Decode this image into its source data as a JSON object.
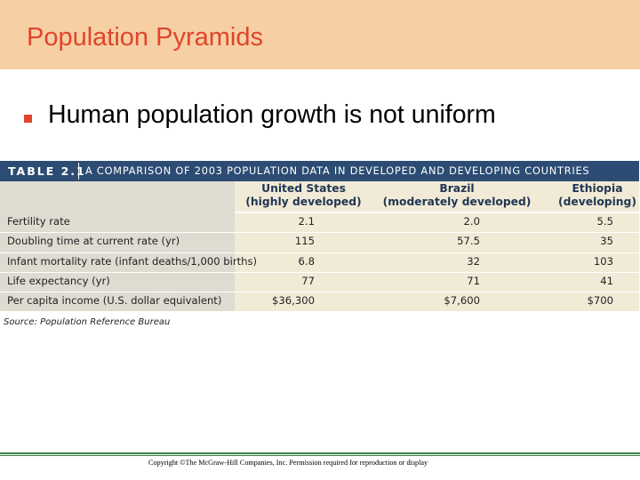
{
  "slide": {
    "title": "Population Pyramids",
    "bullet": "Human population growth is not uniform"
  },
  "table": {
    "number": "TABLE 2.1",
    "caption": "A COMPARISON OF 2003 POPULATION DATA IN DEVELOPED AND DEVELOPING COUNTRIES",
    "columns": [
      {
        "name": "United States",
        "sub": "(highly developed)"
      },
      {
        "name": "Brazil",
        "sub": "(moderately developed)"
      },
      {
        "name": "Ethiopia",
        "sub": "(developing)"
      }
    ],
    "rows": [
      {
        "label": "Fertility rate",
        "values": [
          "2.1",
          "2.0",
          "5.5"
        ]
      },
      {
        "label": "Doubling time at current rate (yr)",
        "values": [
          "115",
          "57.5",
          "35"
        ]
      },
      {
        "label": "Infant mortality rate (infant deaths/1,000 births)",
        "values": [
          "6.8",
          "32",
          "103"
        ]
      },
      {
        "label": "Life expectancy (yr)",
        "values": [
          "77",
          "71",
          "41"
        ]
      },
      {
        "label": "Per capita income (U.S. dollar equivalent)",
        "values": [
          "$36,300",
          "$7,600",
          "$700"
        ]
      }
    ],
    "source": "Source: Population Reference Bureau"
  },
  "footer": {
    "copyright": "Copyright ©The McGraw-Hill Companies, Inc. Permission required for reproduction or display"
  },
  "colors": {
    "title_band": "#f7cfa4",
    "title_text": "#e0452a",
    "table_header": "#2c4c73",
    "table_body": "#f1ead6",
    "footer_rule": "#3b7d47"
  }
}
